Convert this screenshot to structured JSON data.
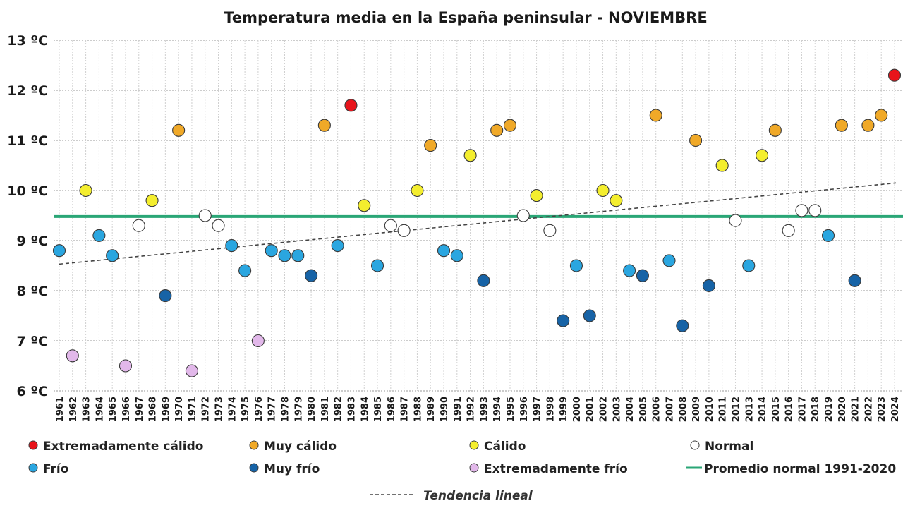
{
  "chart_data": {
    "type": "scatter",
    "title": "Temperatura media en la España peninsular - NOVIEMBRE",
    "xlabel": "",
    "ylabel": "",
    "ylim": [
      6,
      13
    ],
    "yticks": [
      {
        "value": 6,
        "label": "6 ºC"
      },
      {
        "value": 7,
        "label": "7 ºC"
      },
      {
        "value": 8,
        "label": "8 ºC"
      },
      {
        "value": 9,
        "label": "9 ºC"
      },
      {
        "value": 10,
        "label": "10 ºC"
      },
      {
        "value": 11,
        "label": "11 ºC"
      },
      {
        "value": 12,
        "label": "12 ºC"
      },
      {
        "value": 13,
        "label": "13 ºC"
      }
    ],
    "grid": true,
    "categories_colors": {
      "ext_calido": "#e8141b",
      "muy_calido": "#f0a928",
      "calido": "#f4ee2e",
      "normal": "#ffffff",
      "frio": "#2aa6e0",
      "muy_frio": "#1763a6",
      "ext_frio": "#e2b8ea"
    },
    "points": [
      {
        "year": "1961",
        "value": 8.8,
        "cat": "frio"
      },
      {
        "year": "1962",
        "value": 6.7,
        "cat": "ext_frio"
      },
      {
        "year": "1963",
        "value": 10.0,
        "cat": "calido"
      },
      {
        "year": "1964",
        "value": 9.1,
        "cat": "frio"
      },
      {
        "year": "1965",
        "value": 8.7,
        "cat": "frio"
      },
      {
        "year": "1966",
        "value": 6.5,
        "cat": "ext_frio"
      },
      {
        "year": "1967",
        "value": 9.3,
        "cat": "normal"
      },
      {
        "year": "1968",
        "value": 9.8,
        "cat": "calido"
      },
      {
        "year": "1969",
        "value": 7.9,
        "cat": "muy_frio"
      },
      {
        "year": "1970",
        "value": 11.2,
        "cat": "muy_calido"
      },
      {
        "year": "1971",
        "value": 6.4,
        "cat": "ext_frio"
      },
      {
        "year": "1972",
        "value": 9.5,
        "cat": "normal"
      },
      {
        "year": "1973",
        "value": 9.3,
        "cat": "normal"
      },
      {
        "year": "1974",
        "value": 8.9,
        "cat": "frio"
      },
      {
        "year": "1975",
        "value": 8.4,
        "cat": "frio"
      },
      {
        "year": "1976",
        "value": 7.0,
        "cat": "ext_frio"
      },
      {
        "year": "1977",
        "value": 8.8,
        "cat": "frio"
      },
      {
        "year": "1978",
        "value": 8.7,
        "cat": "frio"
      },
      {
        "year": "1979",
        "value": 8.7,
        "cat": "frio"
      },
      {
        "year": "1980",
        "value": 8.3,
        "cat": "muy_frio"
      },
      {
        "year": "1981",
        "value": 11.3,
        "cat": "muy_calido"
      },
      {
        "year": "1982",
        "value": 8.9,
        "cat": "frio"
      },
      {
        "year": "1983",
        "value": 11.7,
        "cat": "ext_calido"
      },
      {
        "year": "1984",
        "value": 9.7,
        "cat": "calido"
      },
      {
        "year": "1985",
        "value": 8.5,
        "cat": "frio"
      },
      {
        "year": "1986",
        "value": 9.3,
        "cat": "normal"
      },
      {
        "year": "1987",
        "value": 9.2,
        "cat": "normal"
      },
      {
        "year": "1988",
        "value": 10.0,
        "cat": "calido"
      },
      {
        "year": "1989",
        "value": 10.9,
        "cat": "muy_calido"
      },
      {
        "year": "1990",
        "value": 8.8,
        "cat": "frio"
      },
      {
        "year": "1991",
        "value": 8.7,
        "cat": "frio"
      },
      {
        "year": "1992",
        "value": 10.7,
        "cat": "calido"
      },
      {
        "year": "1993",
        "value": 8.2,
        "cat": "muy_frio"
      },
      {
        "year": "1994",
        "value": 11.2,
        "cat": "muy_calido"
      },
      {
        "year": "1995",
        "value": 11.3,
        "cat": "muy_calido"
      },
      {
        "year": "1996",
        "value": 9.5,
        "cat": "normal"
      },
      {
        "year": "1997",
        "value": 9.9,
        "cat": "calido"
      },
      {
        "year": "1998",
        "value": 9.2,
        "cat": "normal"
      },
      {
        "year": "1999",
        "value": 7.4,
        "cat": "muy_frio"
      },
      {
        "year": "2000",
        "value": 8.5,
        "cat": "frio"
      },
      {
        "year": "2001",
        "value": 7.5,
        "cat": "muy_frio"
      },
      {
        "year": "2002",
        "value": 10.0,
        "cat": "calido"
      },
      {
        "year": "2003",
        "value": 9.8,
        "cat": "calido"
      },
      {
        "year": "2004",
        "value": 8.4,
        "cat": "frio"
      },
      {
        "year": "2005",
        "value": 8.3,
        "cat": "muy_frio"
      },
      {
        "year": "2006",
        "value": 11.5,
        "cat": "muy_calido"
      },
      {
        "year": "2007",
        "value": 8.6,
        "cat": "frio"
      },
      {
        "year": "2008",
        "value": 7.3,
        "cat": "muy_frio"
      },
      {
        "year": "2009",
        "value": 11.0,
        "cat": "muy_calido"
      },
      {
        "year": "2010",
        "value": 8.1,
        "cat": "muy_frio"
      },
      {
        "year": "2011",
        "value": 10.5,
        "cat": "calido"
      },
      {
        "year": "2012",
        "value": 9.4,
        "cat": "normal"
      },
      {
        "year": "2013",
        "value": 8.5,
        "cat": "frio"
      },
      {
        "year": "2014",
        "value": 10.7,
        "cat": "calido"
      },
      {
        "year": "2015",
        "value": 11.2,
        "cat": "muy_calido"
      },
      {
        "year": "2016",
        "value": 9.2,
        "cat": "normal"
      },
      {
        "year": "2017",
        "value": 9.6,
        "cat": "normal"
      },
      {
        "year": "2018",
        "value": 9.6,
        "cat": "normal"
      },
      {
        "year": "2019",
        "value": 9.1,
        "cat": "frio"
      },
      {
        "year": "2020",
        "value": 11.3,
        "cat": "muy_calido"
      },
      {
        "year": "2021",
        "value": 8.2,
        "cat": "muy_frio"
      },
      {
        "year": "2022",
        "value": 11.3,
        "cat": "muy_calido"
      },
      {
        "year": "2023",
        "value": 11.5,
        "cat": "muy_calido"
      },
      {
        "year": "2024",
        "value": 12.3,
        "cat": "ext_calido"
      }
    ],
    "normal_average": {
      "label": "Promedio normal 1991-2020",
      "value": 9.48,
      "color": "#2aa676"
    },
    "trend": {
      "label": "Tendencia lineal",
      "start_value": 8.53,
      "end_value": 10.15,
      "color": "#444444"
    },
    "legend": [
      {
        "label": "Extremadamente cálido",
        "cat": "ext_calido"
      },
      {
        "label": "Muy cálido",
        "cat": "muy_calido"
      },
      {
        "label": "Cálido",
        "cat": "calido"
      },
      {
        "label": "Normal",
        "cat": "normal"
      },
      {
        "label": "Frío",
        "cat": "frio"
      },
      {
        "label": "Muy frío",
        "cat": "muy_frio"
      },
      {
        "label": "Extremadamente frío",
        "cat": "ext_frio"
      }
    ]
  }
}
